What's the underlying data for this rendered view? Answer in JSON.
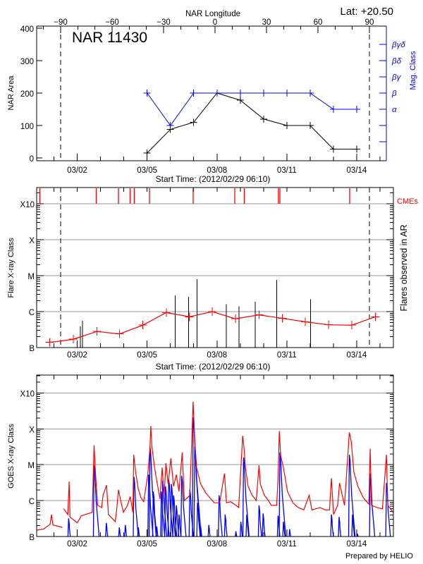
{
  "header": {
    "lat_label": "Lat: +20.50"
  },
  "footer": {
    "credit": "Prepared by HELIO"
  },
  "colors": {
    "area": "#000000",
    "mag_class": "#0000ff",
    "flare_avg": "#ff0000",
    "cme": "#ff0000",
    "goes_long": "#ff0000",
    "goes_short": "#0000ff",
    "grid": "#999999"
  },
  "chart_data": [
    {
      "type": "line",
      "title": "NAR 11430",
      "top_axis_label": "NAR Longitude",
      "lon_ticks": [
        -90,
        -60,
        -30,
        0,
        30,
        60,
        90
      ],
      "limb_longitudes": [
        -90,
        90
      ],
      "xlabel": "Start Time: (2012/02/29 06:10)",
      "x_ticks": [
        "03/02",
        "03/05",
        "03/08",
        "03/11",
        "03/14"
      ],
      "ylabel": "NAR Area",
      "y_ticks": [
        0,
        100,
        200,
        300,
        400
      ],
      "ylim": [
        0,
        400
      ],
      "y2label": "Mag. Class",
      "y2_ticks": [
        "",
        "",
        "α",
        "β",
        "βγ",
        "βδ",
        "βγδ"
      ],
      "x": [
        "03/05 00:00",
        "03/06 00:00",
        "03/07 00:00",
        "03/08 00:00",
        "03/09 00:00",
        "03/10 00:00",
        "03/11 00:00",
        "03/12 00:00",
        "03/13 00:00",
        "03/14 00:00"
      ],
      "series": [
        {
          "axis": "left",
          "values": [
            15,
            88,
            110,
            200,
            178,
            120,
            100,
            100,
            27,
            27
          ]
        },
        {
          "axis": "right",
          "values": [
            4,
            2,
            4,
            4,
            4,
            4,
            4,
            4,
            3,
            3
          ]
        }
      ]
    },
    {
      "type": "line",
      "xlabel": "Start Time: (2012/02/29 06:10)",
      "x_ticks": [
        "03/02",
        "03/05",
        "03/08",
        "03/11",
        "03/14"
      ],
      "ylabel": "Flare X-ray Class",
      "y_ticks": [
        "B",
        "C",
        "M",
        "X",
        "X10"
      ],
      "y2label": "Flares observed in AR",
      "cme_label": "CMEs",
      "cmes": [
        "02/29 09:26",
        "03/02 19:34",
        "03/03 18:27",
        "03/04 06:30",
        "03/04 10:44",
        "03/05 02:25",
        "03/06 23:28",
        "03/08 18:20",
        "03/09 04:09",
        "03/10 15:20",
        "03/10 16:51",
        "03/13 16:45"
      ],
      "flares": [
        {
          "t": "03/02 03:22",
          "class": "B3.9"
        },
        {
          "t": "03/02 05:20",
          "class": "B5.6"
        },
        {
          "t": "03/06 04:56",
          "class": "C2.8"
        },
        {
          "t": "03/06 18:53",
          "class": "C2.6"
        },
        {
          "t": "03/07 03:33",
          "class": "C8.0"
        },
        {
          "t": "03/08 09:46",
          "class": "C1.6"
        },
        {
          "t": "03/08 22:51",
          "class": "C1.4"
        },
        {
          "t": "03/09 15:20",
          "class": "C1.9"
        },
        {
          "t": "03/10 13:26",
          "class": "C7.7"
        },
        {
          "t": "03/12 00:23",
          "class": "C2.2"
        }
      ],
      "series": [
        {
          "points": [
            [
              "02/29 19:32",
              "B1.4",
              1
            ],
            [
              "03/01 05:34",
              "B1.5",
              0
            ],
            [
              "03/01 19:49",
              "B1.7",
              1
            ],
            [
              "03/02 20:08",
              "B2.8",
              1
            ],
            [
              "03/03 19:36",
              "B2.4",
              1
            ],
            [
              "03/04 19:39",
              "B4.2",
              1
            ],
            [
              "03/05 19:42",
              "B9.4",
              1
            ],
            [
              "03/06 19:28",
              "B7.2",
              1
            ],
            [
              "03/07 19:13",
              "C1.0",
              1
            ],
            [
              "03/08 18:55",
              "B6.3",
              1
            ],
            [
              "03/09 19:14",
              "B8.1",
              1
            ],
            [
              "03/10 19:19",
              "B6.5",
              1
            ],
            [
              "03/11 19:05",
              "B5.2",
              1
            ],
            [
              "03/12 19:08",
              "B4.3",
              1
            ],
            [
              "03/13 18:53",
              "B4.2",
              1
            ],
            [
              "03/14 19:22",
              "B7.2",
              1
            ]
          ]
        }
      ]
    },
    {
      "type": "line",
      "x_ticks": [
        "03/02",
        "03/05",
        "03/08",
        "03/11",
        "03/14"
      ],
      "ylabel": "GOES X-ray Class",
      "y_ticks": [
        "B",
        "C",
        "M",
        "X",
        "X10"
      ],
      "series": [
        {
          "channel": "long",
          "points": [
            [
              "02/29 06:10",
              "B1.5"
            ],
            [
              "02/29 13:06",
              "B1.6"
            ],
            [
              "02/29 20:05",
              "B2.2"
            ],
            [
              "02/29 21:30",
              "B4.1"
            ],
            [
              "02/29 22:53",
              "B2.1"
            ],
            [
              "03/01 08:40",
              "B1.8"
            ],
            null,
            [
              "03/01 10:05",
              "B5.9"
            ],
            [
              "03/01 14:15",
              "B4.1"
            ],
            [
              "03/01 15:40",
              "C3.4"
            ],
            [
              "03/01 16:30",
              "B3.5"
            ],
            [
              "03/02 00:00",
              "B2.4"
            ],
            [
              "03/02 04:15",
              "B3.8"
            ],
            [
              "03/02 15:25",
              "B4.7"
            ],
            [
              "03/02 17:20",
              "M3.5"
            ],
            [
              "03/02 18:45",
              "C6.2"
            ],
            [
              "03/02 21:00",
              "B7.4"
            ],
            [
              "03/03 01:10",
              "B6.4"
            ],
            [
              "03/03 02:35",
              "C1.4"
            ],
            [
              "03/03 06:10",
              "C2.7"
            ],
            [
              "03/03 08:10",
              "B4.1"
            ],
            [
              "03/03 15:10",
              "B2.6"
            ],
            [
              "03/03 16:35",
              "B5.5"
            ],
            [
              "03/03 18:30",
              "C2.0"
            ],
            [
              "03/03 20:45",
              "C1.0"
            ],
            [
              "03/03 23:35",
              "B4.7"
            ],
            [
              "03/04 03:45",
              "B7.4"
            ],
            [
              "03/04 06:35",
              "C1.3"
            ],
            [
              "03/04 09:20",
              "B4.7"
            ],
            [
              "03/04 10:10",
              "M1.9"
            ],
            [
              "03/04 12:10",
              "C6.2"
            ],
            [
              "03/04 14:55",
              "C2.1"
            ],
            [
              "03/04 17:40",
              "C1.2"
            ],
            [
              "03/04 20:30",
              "B9.3"
            ],
            [
              "03/05 00:40",
              "C5.3"
            ],
            [
              "03/05 02:55",
              "M3.0"
            ],
            [
              "03/05 03:50",
              "X1.2"
            ],
            [
              "03/05 04:55",
              "M3.2"
            ],
            [
              "03/05 07:40",
              "C8.3"
            ],
            [
              "03/05 10:30",
              "C2.9"
            ],
            [
              "03/05 13:15",
              "C1.1"
            ],
            [
              "03/05 15:30",
              "C8.3"
            ],
            [
              "03/05 17:30",
              "C1.4"
            ],
            [
              "03/05 19:25",
              "M1.1"
            ],
            [
              "03/05 21:40",
              "C2.9"
            ],
            [
              "03/06 00:30",
              "M1.5"
            ],
            [
              "03/06 03:15",
              "C2.5"
            ],
            [
              "03/06 06:05",
              "C5.3"
            ],
            [
              "03/06 08:50",
              "C1.8"
            ],
            [
              "03/06 12:10",
              "M2.2"
            ],
            [
              "03/06 14:25",
              "C1.0"
            ],
            [
              "03/06 20:00",
              "C1.4"
            ],
            [
              "03/06 23:25",
              "X5.7"
            ],
            [
              "03/07 01:05",
              "M5.1"
            ],
            [
              "03/07 03:00",
              "C8.3"
            ],
            [
              "03/07 07:10",
              "C2.9"
            ],
            [
              "03/07 12:45",
              "C1.6"
            ],
            [
              "03/07 21:10",
              "B8.7"
            ],
            [
              "03/08 02:45",
              "B8.7"
            ],
            [
              "03/08 07:45",
              "C5.7"
            ],
            [
              "03/08 09:45",
              "B8.7"
            ],
            [
              "03/08 14:00",
              "B9.3"
            ],
            [
              "03/08 19:30",
              "B7.4"
            ],
            [
              "03/08 22:20",
              "B6.4"
            ],
            [
              "03/09 02:30",
              "M6.4"
            ],
            [
              "03/09 03:55",
              "M2.8"
            ],
            [
              "03/09 05:20",
              "C8.3"
            ],
            [
              "03/09 08:05",
              "C2.5"
            ],
            [
              "03/09 12:20",
              "C1.4"
            ],
            [
              "03/09 16:30",
              "C1.0"
            ],
            [
              "03/09 19:20",
              "C9.7"
            ],
            [
              "03/09 20:40",
              "C2.9"
            ],
            [
              "03/10 00:55",
              "C1.4"
            ],
            [
              "03/10 05:05",
              "C1.0"
            ],
            [
              "03/10 07:55",
              "B7.4"
            ],
            [
              "03/10 13:30",
              "B7.4"
            ],
            [
              "03/10 14:55",
              "C3.9"
            ],
            [
              "03/10 16:15",
              "M8.7"
            ],
            [
              "03/10 17:40",
              "M1.8"
            ],
            [
              "03/10 20:30",
              "C8.3"
            ],
            [
              "03/11 00:40",
              "C1.8"
            ],
            [
              "03/11 06:15",
              "B8.7"
            ],
            [
              "03/11 11:50",
              "B6.4"
            ],
            [
              "03/11 17:25",
              "B5.5"
            ],
            [
              "03/11 23:00",
              "C1.4"
            ],
            [
              "03/12 01:50",
              "B5.5"
            ],
            [
              "03/12 10:10",
              "B6.4"
            ],
            [
              "03/12 15:45",
              "B5.5"
            ],
            [
              "03/12 20:00",
              "B5.5"
            ],
            [
              "03/12 21:55",
              "C4.2"
            ],
            [
              "03/13 00:10",
              "B4.1"
            ],
            [
              "03/13 04:25",
              "B7.4"
            ],
            [
              "03/13 06:20",
              "C3.1"
            ],
            [
              "03/13 11:25",
              "B7.4"
            ],
            [
              "03/13 16:25",
              "M8.0"
            ],
            [
              "03/13 18:25",
              "M4.4"
            ],
            [
              "03/13 21:05",
              "C6.2"
            ],
            [
              "03/14 01:15",
              "C2.5"
            ],
            [
              "03/14 06:50",
              "C1.2"
            ],
            [
              "03/14 12:30",
              "B8.0"
            ],
            [
              "03/14 13:55",
              "M2.8"
            ],
            [
              "03/14 15:15",
              "B7.4"
            ],
            [
              "03/14 20:55",
              "B6.4"
            ],
            [
              "03/15 02:30",
              "B5.9"
            ],
            [
              "03/15 06:40",
              "M1.9"
            ],
            [
              "03/15 08:05",
              "B7.4"
            ],
            [
              "03/15 13:40",
              "B4.7"
            ]
          ]
        },
        {
          "channel": "short",
          "peaks": [
            [
              "03/01 15:05",
              "B3.2"
            ],
            [
              "03/02 17:20",
              "C9.7"
            ],
            [
              "03/03 05:55",
              "B2.4"
            ],
            [
              "03/03 19:20",
              "B1.8"
            ],
            [
              "03/04 01:30",
              "B2.1"
            ],
            [
              "03/04 10:25",
              "C4.6"
            ],
            [
              "03/04 14:55",
              "B1.8"
            ],
            [
              "03/05 01:30",
              "C5.3"
            ],
            [
              "03/05 02:55",
              "M3.2"
            ],
            [
              "03/05 06:20",
              "C1.8"
            ],
            [
              "03/05 09:55",
              "B1.9"
            ],
            [
              "03/05 14:40",
              "C1.8"
            ],
            [
              "03/05 16:05",
              "C3.6"
            ],
            [
              "03/05 18:55",
              "C2.5"
            ],
            [
              "03/05 22:15",
              "C3.9"
            ],
            [
              "03/06 01:00",
              "C2.9"
            ],
            [
              "03/06 03:15",
              "C1.4"
            ],
            [
              "03/06 06:05",
              "B7.4"
            ],
            [
              "03/06 08:50",
              "B4.1"
            ],
            [
              "03/06 11:35",
              "C4.9"
            ],
            [
              "03/06 20:00",
              "C2.1"
            ],
            [
              "03/06 23:25",
              "X2.1"
            ],
            [
              "03/07 01:05",
              "M3.2"
            ],
            [
              "03/07 03:55",
              "B8.7"
            ],
            [
              "03/07 07:10",
              "B1.9"
            ],
            [
              "03/07 15:35",
              "B2.1"
            ],
            [
              "03/08 02:10",
              "C1.4"
            ],
            [
              "03/08 08:25",
              "B4.1"
            ],
            [
              "03/08 19:30",
              "B1.4"
            ],
            [
              "03/09 00:35",
              "B2.6"
            ],
            [
              "03/09 03:25",
              "M1.6"
            ],
            [
              "03/09 06:40",
              "B4.1"
            ],
            [
              "03/09 19:20",
              "B7.4"
            ],
            [
              "03/09 23:30",
              "B4.4"
            ],
            [
              "03/10 14:55",
              "B3.8"
            ],
            [
              "03/10 16:50",
              "M2.2"
            ],
            [
              "03/10 20:30",
              "B2.6"
            ],
            [
              "03/11 02:55",
              "B1.6"
            ],
            [
              "03/12 21:55",
              "B4.1"
            ],
            [
              "03/13 05:50",
              "B3.5"
            ],
            [
              "03/13 16:25",
              "M1.9"
            ],
            [
              "03/13 19:40",
              "B4.1"
            ],
            [
              "03/14 00:50",
              "B1.2"
            ],
            [
              "03/14 13:55",
              "C5.7"
            ],
            [
              "03/15 06:40",
              "C3.1"
            ]
          ]
        }
      ]
    }
  ]
}
